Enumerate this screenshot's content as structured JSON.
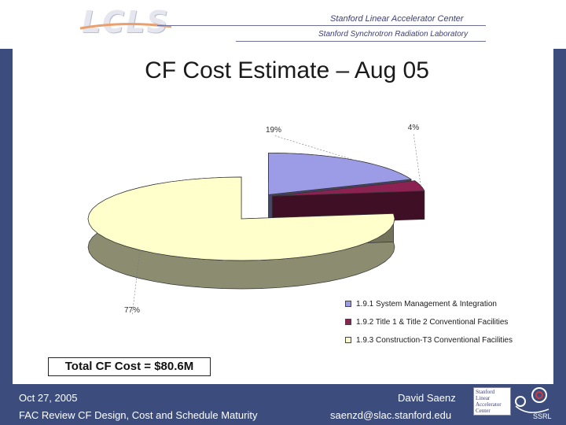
{
  "header": {
    "logo": "LCLS",
    "institution_1": "Stanford Linear Accelerator Center",
    "institution_2": "Stanford Synchrotron Radiation Laboratory"
  },
  "slide": {
    "title": "CF Cost Estimate – Aug 05",
    "total_cost": "Total CF Cost = $80.6M"
  },
  "chart_data": {
    "type": "pie",
    "style": "3d-exploded",
    "title": "",
    "slices": [
      {
        "label": "1.9.1 System Management & Integration",
        "percent_label": "19%",
        "value": 19,
        "color": "#9c9ce6"
      },
      {
        "label": "1.9.2 Title 1 & Title 2 Conventional Facilities",
        "percent_label": "4%",
        "value": 4,
        "color": "#8b2252"
      },
      {
        "label": "1.9.3 Construction-T3 Conventional Facilities",
        "percent_label": "77%",
        "value": 77,
        "color": "#ffffcc"
      }
    ],
    "legend_position": "bottom-right"
  },
  "footer": {
    "date": "Oct 27, 2005",
    "event": "FAC Review CF Design, Cost and Schedule Maturity",
    "author": "David Saenz",
    "email": "saenzd@slac.stanford.edu",
    "badge_lines": [
      "Stanford",
      "Linear",
      "Accelerator",
      "Center"
    ],
    "ssrl_label": "SSRL"
  }
}
